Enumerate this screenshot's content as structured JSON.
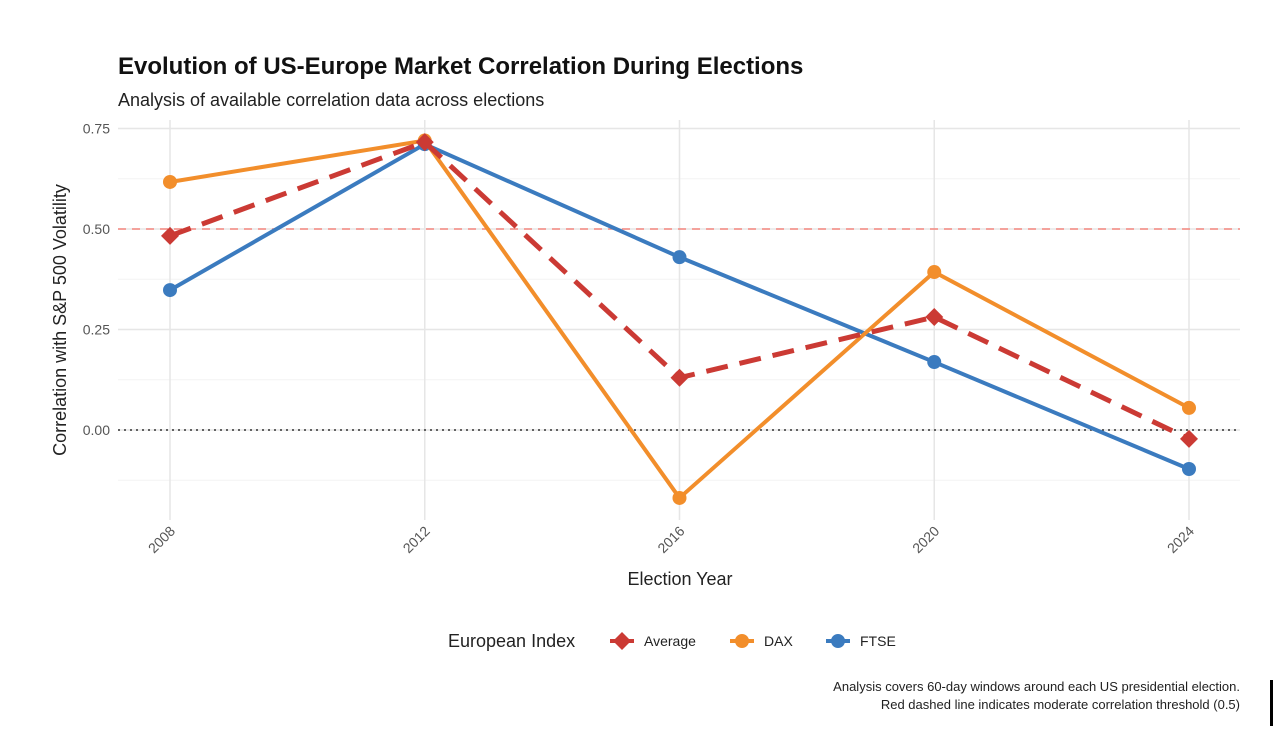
{
  "chart_data": {
    "type": "line",
    "title": "Evolution of US-Europe Market Correlation During Elections",
    "subtitle": "Analysis of available correlation data across elections",
    "xlabel": "Election Year",
    "ylabel": "Correlation with S&P 500 Volatility",
    "categories": [
      "2008",
      "2012",
      "2016",
      "2020",
      "2024"
    ],
    "ylim": [
      -0.2,
      0.75
    ],
    "yticks": [
      0,
      0.25,
      0.5,
      0.75
    ],
    "ytick_labels": [
      "0.00",
      "0.25",
      "0.50",
      "0.75"
    ],
    "grid": true,
    "legend": {
      "title": "European Index",
      "placement": "bottom"
    },
    "series": [
      {
        "name": "Average",
        "values": [
          0.483,
          0.716,
          0.13,
          0.281,
          -0.022
        ],
        "color": "#cb3a34",
        "dashed": true,
        "marker": "diamond"
      },
      {
        "name": "DAX",
        "values": [
          0.617,
          0.72,
          -0.169,
          0.393,
          0.055
        ],
        "color": "#f28e2b",
        "dashed": false,
        "marker": "circle"
      },
      {
        "name": "FTSE",
        "values": [
          0.348,
          0.711,
          0.43,
          0.169,
          -0.097
        ],
        "color": "#3b7bbf",
        "dashed": false,
        "marker": "circle"
      }
    ],
    "reference_lines": [
      {
        "y": 0.5,
        "color": "#f4877f",
        "style": "dashed"
      },
      {
        "y": 0,
        "color": "#333333",
        "style": "dotted"
      }
    ],
    "caption": [
      "Analysis covers 60-day windows around each US presidential election.",
      "Red dashed line indicates moderate correlation threshold (0.5)"
    ]
  }
}
